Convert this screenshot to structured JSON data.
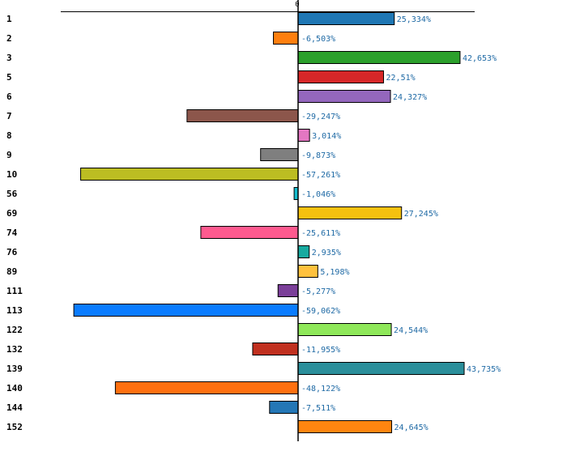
{
  "chart_data": {
    "type": "bar",
    "orientation": "horizontal",
    "title": "",
    "xlabel": "",
    "ylabel": "",
    "xlim": [
      -62.5,
      47.5
    ],
    "zero_tick_label": "0",
    "grid": false,
    "categories": [
      "1",
      "2",
      "3",
      "5",
      "6",
      "7",
      "8",
      "9",
      "10",
      "56",
      "69",
      "74",
      "76",
      "89",
      "111",
      "113",
      "122",
      "132",
      "139",
      "140",
      "144",
      "152"
    ],
    "values": [
      25.334,
      -6.503,
      42.653,
      22.51,
      24.327,
      -29.247,
      3.014,
      -9.873,
      -57.261,
      -1.046,
      27.245,
      -25.611,
      2.935,
      5.198,
      -5.277,
      -59.062,
      24.544,
      -11.955,
      43.735,
      -48.122,
      -7.511,
      24.645
    ],
    "value_labels": [
      "25,334%",
      "-6,503%",
      "42,653%",
      "22,51%",
      "24,327%",
      "-29,247%",
      "3,014%",
      "-9,873%",
      "-57,261%",
      "-1,046%",
      "27,245%",
      "-25,611%",
      "2,935%",
      "5,198%",
      "-5,277%",
      "-59,062%",
      "24,544%",
      "-11,955%",
      "43,735%",
      "-48,122%",
      "-7,511%",
      "24,645%"
    ],
    "colors": [
      "#1f77b4",
      "#ff7f0e",
      "#2ca02c",
      "#d62728",
      "#9467bd",
      "#8c564b",
      "#e377c2",
      "#7f7f7f",
      "#bcbd22",
      "#17becf",
      "#f5c10f",
      "#ff5a8f",
      "#17aaa0",
      "#ffc13d",
      "#7b3f99",
      "#0a7cff",
      "#8fe85a",
      "#c0301f",
      "#2b8f9b",
      "#ff7010",
      "#2477b6",
      "#ff8510"
    ],
    "label_color": "#1f6aa5"
  }
}
